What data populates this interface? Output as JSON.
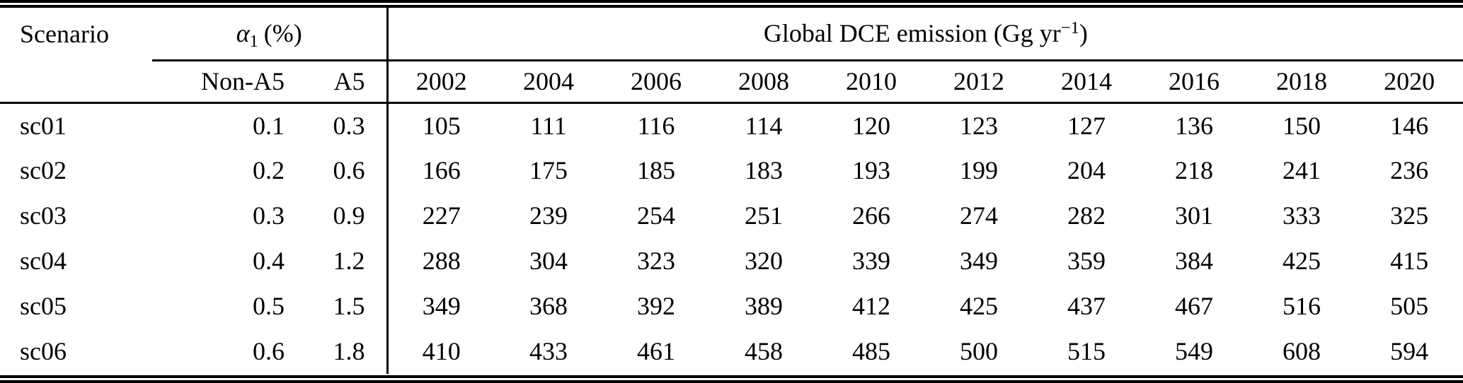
{
  "page": {
    "background": "#ffffff",
    "rule_color": "#000000"
  },
  "table": {
    "header": {
      "scenario": "Scenario",
      "alpha_symbol": "α",
      "alpha_subscript": "1",
      "alpha_unit": "(%)",
      "emission_prefix": "Global DCE emission (Gg yr",
      "emission_superscript": "−1",
      "emission_suffix": ")",
      "non_a5": "Non-A5",
      "a5": "A5",
      "years": [
        "2002",
        "2004",
        "2006",
        "2008",
        "2010",
        "2012",
        "2014",
        "2016",
        "2018",
        "2020"
      ]
    },
    "rows": [
      {
        "scenario": "sc01",
        "non_a5": "0.1",
        "a5": "0.3",
        "values": [
          105,
          111,
          116,
          114,
          120,
          123,
          127,
          136,
          150,
          146
        ]
      },
      {
        "scenario": "sc02",
        "non_a5": "0.2",
        "a5": "0.6",
        "values": [
          166,
          175,
          185,
          183,
          193,
          199,
          204,
          218,
          241,
          236
        ]
      },
      {
        "scenario": "sc03",
        "non_a5": "0.3",
        "a5": "0.9",
        "values": [
          227,
          239,
          254,
          251,
          266,
          274,
          282,
          301,
          333,
          325
        ]
      },
      {
        "scenario": "sc04",
        "non_a5": "0.4",
        "a5": "1.2",
        "values": [
          288,
          304,
          323,
          320,
          339,
          349,
          359,
          384,
          425,
          415
        ]
      },
      {
        "scenario": "sc05",
        "non_a5": "0.5",
        "a5": "1.5",
        "values": [
          349,
          368,
          392,
          389,
          412,
          425,
          437,
          467,
          516,
          505
        ]
      },
      {
        "scenario": "sc06",
        "non_a5": "0.6",
        "a5": "1.8",
        "values": [
          410,
          433,
          461,
          458,
          485,
          500,
          515,
          549,
          608,
          594
        ]
      }
    ]
  }
}
